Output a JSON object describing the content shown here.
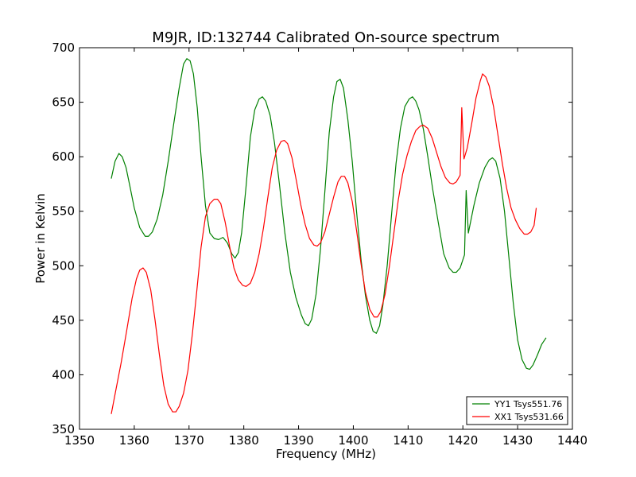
{
  "chart_data": {
    "type": "line",
    "title": "M9JR, ID:132744 Calibrated On-source spectrum",
    "xlabel": "Frequency (MHz)",
    "ylabel": "Power in Kelvin",
    "xlim": [
      1350,
      1440
    ],
    "ylim": [
      350,
      700
    ],
    "xticks": [
      1350,
      1360,
      1370,
      1380,
      1390,
      1400,
      1410,
      1420,
      1430,
      1440
    ],
    "yticks": [
      350,
      400,
      450,
      500,
      550,
      600,
      650,
      700
    ],
    "grid": false,
    "legend_position": "bottom-right",
    "series": [
      {
        "name": "YY1 Tsys551.76",
        "color": "#008000",
        "points": [
          [
            1355.8,
            580
          ],
          [
            1356.5,
            596
          ],
          [
            1357.2,
            603
          ],
          [
            1357.8,
            600
          ],
          [
            1358.5,
            590
          ],
          [
            1359.2,
            573
          ],
          [
            1360.0,
            553
          ],
          [
            1361.0,
            535
          ],
          [
            1362.0,
            527
          ],
          [
            1362.6,
            527
          ],
          [
            1363.3,
            531
          ],
          [
            1364.2,
            543
          ],
          [
            1365.2,
            565
          ],
          [
            1366.2,
            596
          ],
          [
            1367.2,
            630
          ],
          [
            1368.2,
            663
          ],
          [
            1369.0,
            685
          ],
          [
            1369.6,
            690
          ],
          [
            1370.2,
            688
          ],
          [
            1370.8,
            676
          ],
          [
            1371.5,
            645
          ],
          [
            1372.2,
            600
          ],
          [
            1373.0,
            555
          ],
          [
            1373.8,
            530
          ],
          [
            1374.6,
            525
          ],
          [
            1375.4,
            524
          ],
          [
            1376.2,
            526
          ],
          [
            1377.0,
            521
          ],
          [
            1377.8,
            511
          ],
          [
            1378.4,
            507
          ],
          [
            1379.0,
            512
          ],
          [
            1379.6,
            530
          ],
          [
            1380.4,
            572
          ],
          [
            1381.2,
            618
          ],
          [
            1382.0,
            643
          ],
          [
            1382.8,
            653
          ],
          [
            1383.4,
            655
          ],
          [
            1384.0,
            651
          ],
          [
            1384.8,
            638
          ],
          [
            1385.6,
            613
          ],
          [
            1386.5,
            575
          ],
          [
            1387.5,
            530
          ],
          [
            1388.5,
            494
          ],
          [
            1389.5,
            471
          ],
          [
            1390.5,
            455
          ],
          [
            1391.2,
            447
          ],
          [
            1391.8,
            445
          ],
          [
            1392.4,
            451
          ],
          [
            1393.2,
            474
          ],
          [
            1394.0,
            515
          ],
          [
            1394.8,
            568
          ],
          [
            1395.6,
            622
          ],
          [
            1396.4,
            655
          ],
          [
            1397.0,
            669
          ],
          [
            1397.6,
            671
          ],
          [
            1398.2,
            663
          ],
          [
            1399.0,
            634
          ],
          [
            1399.8,
            596
          ],
          [
            1400.6,
            549
          ],
          [
            1401.4,
            506
          ],
          [
            1402.2,
            473
          ],
          [
            1403.0,
            450
          ],
          [
            1403.6,
            440
          ],
          [
            1404.2,
            438
          ],
          [
            1404.8,
            445
          ],
          [
            1405.4,
            464
          ],
          [
            1406.2,
            501
          ],
          [
            1407.0,
            548
          ],
          [
            1407.8,
            594
          ],
          [
            1408.6,
            626
          ],
          [
            1409.4,
            646
          ],
          [
            1410.2,
            653
          ],
          [
            1410.8,
            655
          ],
          [
            1411.4,
            651
          ],
          [
            1412.0,
            643
          ],
          [
            1412.8,
            625
          ],
          [
            1413.6,
            600
          ],
          [
            1414.5,
            570
          ],
          [
            1415.5,
            540
          ],
          [
            1416.5,
            511
          ],
          [
            1417.5,
            498
          ],
          [
            1418.2,
            494
          ],
          [
            1418.8,
            494
          ],
          [
            1419.5,
            498
          ],
          [
            1420.3,
            510
          ],
          [
            1420.6,
            569
          ],
          [
            1421.0,
            530
          ],
          [
            1422.0,
            555
          ],
          [
            1423.0,
            576
          ],
          [
            1424.0,
            590
          ],
          [
            1424.8,
            597
          ],
          [
            1425.4,
            599
          ],
          [
            1426.0,
            596
          ],
          [
            1426.8,
            580
          ],
          [
            1427.6,
            550
          ],
          [
            1428.4,
            508
          ],
          [
            1429.2,
            466
          ],
          [
            1430.0,
            432
          ],
          [
            1430.8,
            414
          ],
          [
            1431.6,
            406
          ],
          [
            1432.2,
            405
          ],
          [
            1432.8,
            409
          ],
          [
            1433.6,
            418
          ],
          [
            1434.4,
            428
          ],
          [
            1435.2,
            434
          ]
        ]
      },
      {
        "name": "XX1 Tsys531.66",
        "color": "#ff0000",
        "points": [
          [
            1355.8,
            364
          ],
          [
            1356.6,
            385
          ],
          [
            1357.6,
            411
          ],
          [
            1358.6,
            440
          ],
          [
            1359.6,
            470
          ],
          [
            1360.4,
            488
          ],
          [
            1361.0,
            496
          ],
          [
            1361.6,
            498
          ],
          [
            1362.2,
            494
          ],
          [
            1363.0,
            478
          ],
          [
            1363.8,
            450
          ],
          [
            1364.6,
            418
          ],
          [
            1365.4,
            390
          ],
          [
            1366.2,
            373
          ],
          [
            1367.0,
            366
          ],
          [
            1367.6,
            366
          ],
          [
            1368.2,
            371
          ],
          [
            1369.0,
            383
          ],
          [
            1369.8,
            404
          ],
          [
            1370.6,
            437
          ],
          [
            1371.4,
            476
          ],
          [
            1372.2,
            517
          ],
          [
            1373.0,
            545
          ],
          [
            1373.8,
            557
          ],
          [
            1374.6,
            561
          ],
          [
            1375.2,
            561
          ],
          [
            1375.8,
            557
          ],
          [
            1376.6,
            540
          ],
          [
            1377.4,
            518
          ],
          [
            1378.2,
            498
          ],
          [
            1379.0,
            487
          ],
          [
            1379.8,
            482
          ],
          [
            1380.4,
            481
          ],
          [
            1381.2,
            484
          ],
          [
            1382.0,
            494
          ],
          [
            1382.8,
            511
          ],
          [
            1383.6,
            535
          ],
          [
            1384.4,
            563
          ],
          [
            1385.2,
            590
          ],
          [
            1386.0,
            606
          ],
          [
            1386.8,
            614
          ],
          [
            1387.4,
            615
          ],
          [
            1388.0,
            612
          ],
          [
            1388.8,
            599
          ],
          [
            1389.6,
            578
          ],
          [
            1390.4,
            556
          ],
          [
            1391.2,
            538
          ],
          [
            1392.0,
            525
          ],
          [
            1392.8,
            519
          ],
          [
            1393.4,
            518
          ],
          [
            1394.0,
            521
          ],
          [
            1394.8,
            531
          ],
          [
            1395.6,
            547
          ],
          [
            1396.4,
            563
          ],
          [
            1397.2,
            577
          ],
          [
            1397.8,
            582
          ],
          [
            1398.4,
            582
          ],
          [
            1399.0,
            576
          ],
          [
            1399.8,
            559
          ],
          [
            1400.6,
            532
          ],
          [
            1401.4,
            502
          ],
          [
            1402.2,
            476
          ],
          [
            1403.0,
            460
          ],
          [
            1403.8,
            453
          ],
          [
            1404.4,
            453
          ],
          [
            1405.0,
            458
          ],
          [
            1405.8,
            474
          ],
          [
            1406.6,
            500
          ],
          [
            1407.4,
            530
          ],
          [
            1408.2,
            560
          ],
          [
            1409.0,
            584
          ],
          [
            1409.8,
            601
          ],
          [
            1410.6,
            614
          ],
          [
            1411.4,
            624
          ],
          [
            1412.2,
            628
          ],
          [
            1412.8,
            629
          ],
          [
            1413.6,
            626
          ],
          [
            1414.4,
            617
          ],
          [
            1415.2,
            604
          ],
          [
            1416.0,
            591
          ],
          [
            1416.8,
            581
          ],
          [
            1417.6,
            576
          ],
          [
            1418.2,
            575
          ],
          [
            1418.8,
            577
          ],
          [
            1419.5,
            583
          ],
          [
            1419.8,
            645
          ],
          [
            1420.2,
            598
          ],
          [
            1420.8,
            608
          ],
          [
            1421.6,
            630
          ],
          [
            1422.4,
            654
          ],
          [
            1423.2,
            670
          ],
          [
            1423.6,
            676
          ],
          [
            1424.2,
            673
          ],
          [
            1424.8,
            665
          ],
          [
            1425.6,
            646
          ],
          [
            1426.4,
            620
          ],
          [
            1427.2,
            594
          ],
          [
            1428.0,
            571
          ],
          [
            1428.8,
            553
          ],
          [
            1429.6,
            542
          ],
          [
            1430.4,
            534
          ],
          [
            1431.2,
            529
          ],
          [
            1431.8,
            529
          ],
          [
            1432.4,
            531
          ],
          [
            1433.0,
            537
          ],
          [
            1433.4,
            553
          ]
        ]
      }
    ]
  }
}
